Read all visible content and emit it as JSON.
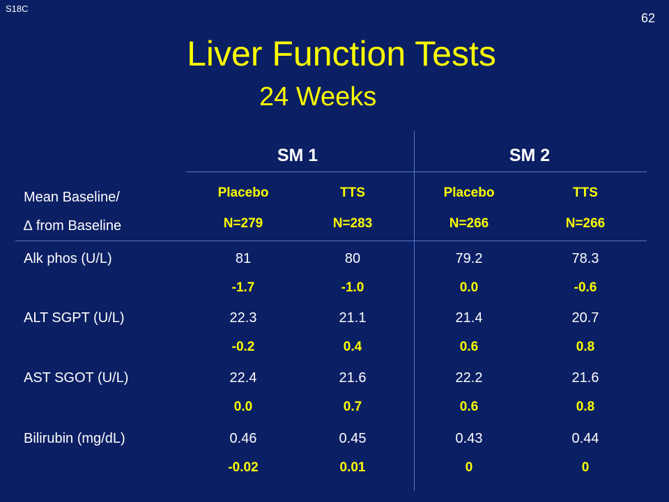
{
  "slide": {
    "code": "S18C",
    "number": "62",
    "title": "Liver Function Tests",
    "subtitle": "24 Weeks"
  },
  "table": {
    "row_header_line1": "Mean Baseline/",
    "row_header_delta_symbol": "∆",
    "row_header_line2": "from Baseline",
    "groups": [
      "SM 1",
      "SM 2"
    ],
    "columns": [
      {
        "arm": "Placebo",
        "n": "N=279"
      },
      {
        "arm": "TTS",
        "n": "N=283"
      },
      {
        "arm": "Placebo",
        "n": "N=266"
      },
      {
        "arm": "TTS",
        "n": "N=266"
      }
    ],
    "rows": [
      {
        "label": "Alk phos (U/L)",
        "baseline": [
          "81",
          "80",
          "79.2",
          "78.3"
        ],
        "change": [
          "-1.7",
          "-1.0",
          "0.0",
          "-0.6"
        ]
      },
      {
        "label": "ALT SGPT (U/L)",
        "baseline": [
          "22.3",
          "21.1",
          "21.4",
          "20.7"
        ],
        "change": [
          "-0.2",
          "0.4",
          "0.6",
          "0.8"
        ]
      },
      {
        "label": "AST SGOT (U/L)",
        "baseline": [
          "22.4",
          "21.6",
          "22.2",
          "21.6"
        ],
        "change": [
          "0.0",
          "0.7",
          "0.6",
          "0.8"
        ]
      },
      {
        "label": "Bilirubin (mg/dL)",
        "baseline": [
          "0.46",
          "0.45",
          "0.43",
          "0.44"
        ],
        "change": [
          "-0.02",
          "0.01",
          "0",
          "0"
        ]
      }
    ]
  },
  "colors": {
    "background": "#0a1f64",
    "title": "#ffff00",
    "change_values": "#ffff00",
    "baseline_values": "#ffffff",
    "rules": "#5a78c8"
  }
}
